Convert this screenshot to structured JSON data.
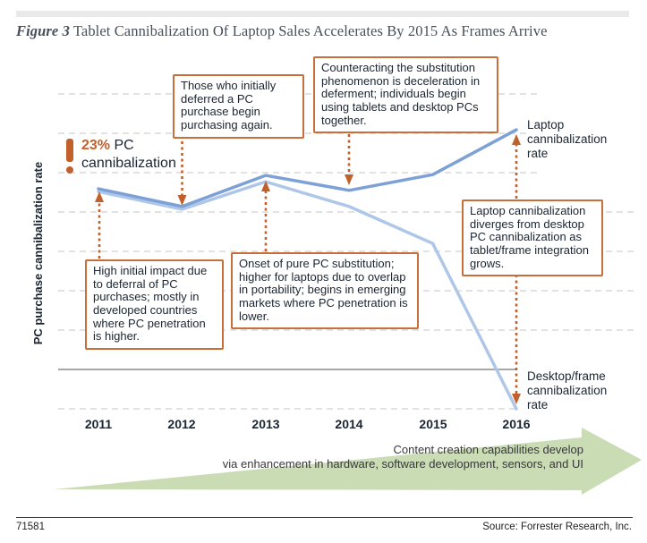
{
  "header": {
    "figure_label": "Figure 3",
    "title": "Tablet Cannibalization Of Laptop Sales Accelerates By 2015 As Frames Arrive"
  },
  "marker": {
    "value": "23%",
    "suffix": "PC",
    "line2": "cannibalization"
  },
  "chart_data": {
    "type": "line",
    "ylabel": "PC purchase cannibalization rate",
    "x": [
      2011,
      2012,
      2013,
      2014,
      2015,
      2016
    ],
    "y_units": "relative rate, unlabeled axis; 0 = solid baseline, gridline step = 10 (estimated)",
    "series": [
      {
        "name": "Laptop cannibalization rate",
        "color": "#7da0d6",
        "values": [
          45.9,
          41.4,
          49.3,
          45.5,
          49.5,
          60.9
        ]
      },
      {
        "name": "Desktop/frame cannibalization rate",
        "color": "#aec7e8",
        "values": [
          45.2,
          40.7,
          47.7,
          41.4,
          32.0,
          -10.0
        ]
      }
    ],
    "grid": {
      "dashed_values": [
        70,
        60,
        50,
        40,
        30,
        20,
        10,
        -10
      ],
      "solid_axis_value": 0,
      "grid_on": true
    },
    "legend_position": "labels at line ends, right side",
    "callouts": [
      "Those who initially deferred a PC purchase begin purchasing again.",
      "Counteracting the substitution phenomenon is deceleration in deferment; individuals begin using tablets and desktop PCs together.",
      "High initial impact due to deferral of PC purchases; mostly in developed countries where PC penetration is higher.",
      "Onset of pure PC substitution; higher for laptops due to overlap in portability; begins in emerging markets where PC penetration is lower.",
      "Laptop cannibalization diverges from desktop PC cannibalization as tablet/frame integration grows."
    ],
    "connectors": [
      {
        "x": 111,
        "from": 289,
        "tip": 214,
        "dir": "up"
      },
      {
        "x": 203.5,
        "from": 158,
        "tip": 230,
        "dir": "down"
      },
      {
        "x": 297,
        "from": 281,
        "tip": 202,
        "dir": "up"
      },
      {
        "x": 390,
        "from": 150,
        "tip": 207,
        "dir": "down"
      },
      {
        "x": 577,
        "from": 222,
        "tip": 150,
        "dir": "up"
      },
      {
        "x": 577,
        "from": 307,
        "tip": 452,
        "dir": "down"
      }
    ]
  },
  "growth_arrow": {
    "line1": "Content creation capabilities develop",
    "line2": "via enhancement in hardware, software development, sensors, and UI",
    "color": "#c9dcb4"
  },
  "footer": {
    "doc_number": "71581",
    "source": "Source: Forrester Research, Inc."
  },
  "colors": {
    "accent_orange": "#c2602c",
    "callout_border": "#c76f3b",
    "laptop_line": "#7da0d6",
    "desktop_line": "#aec7e8",
    "grid": "#d8d8d8",
    "axis": "#8a8a8a",
    "text_dark": "#1b2531",
    "arrow_green": "#c9dcb4"
  }
}
